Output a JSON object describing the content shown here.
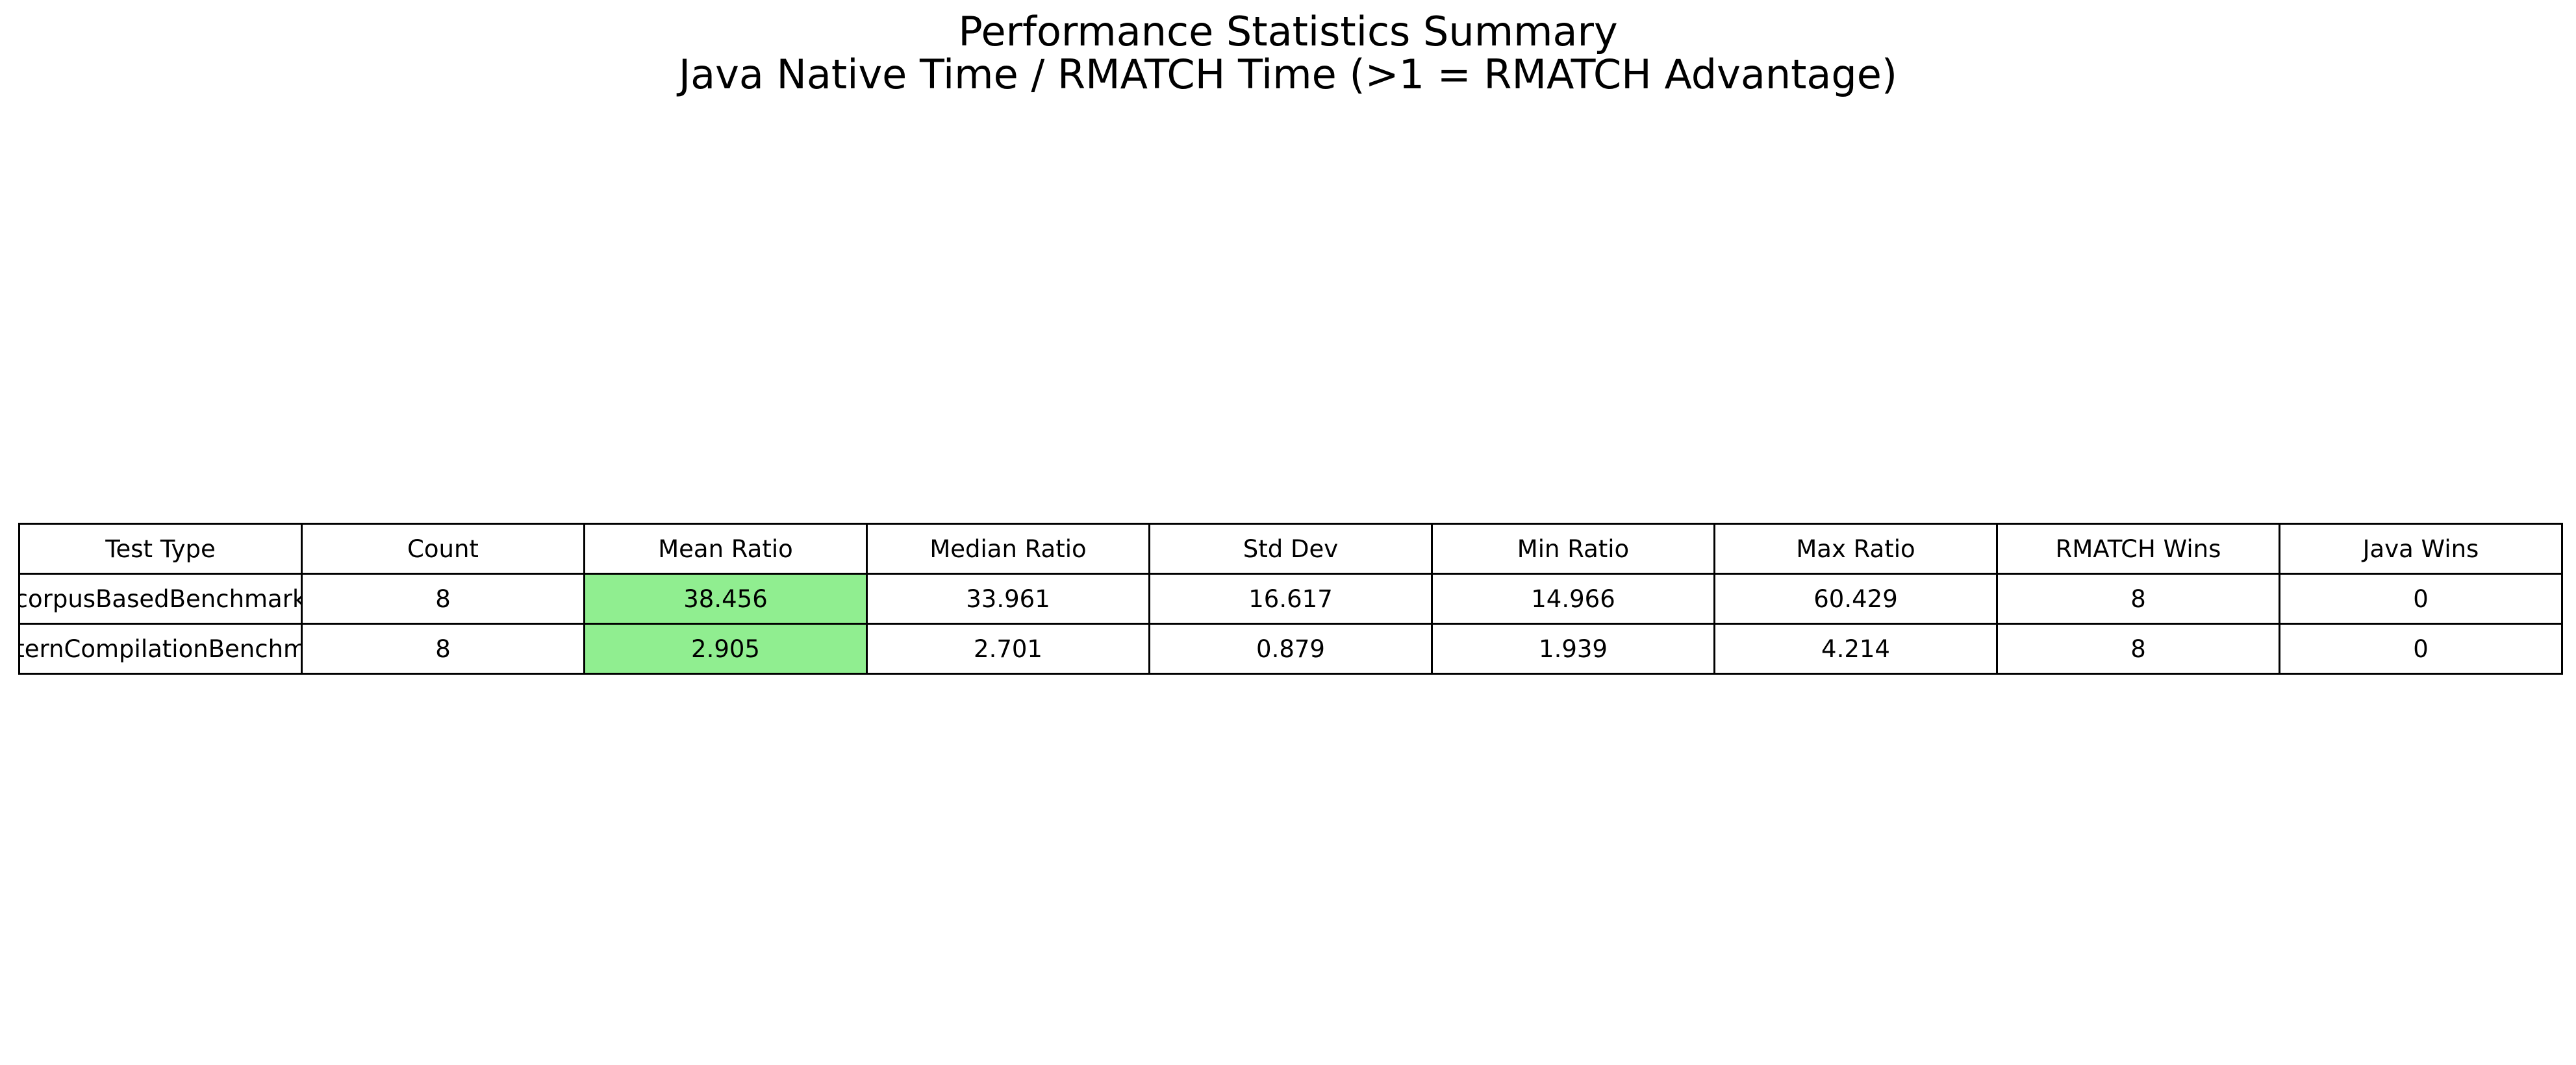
{
  "chart_data": {
    "type": "table",
    "title": "Performance Statistics Summary",
    "subtitle": "Java Native Time / RMATCH Time (>1 = RMATCH Advantage)",
    "highlight_color": "#90ee90",
    "highlight_column": "Mean Ratio",
    "columns": [
      "Test Type",
      "Count",
      "Mean Ratio",
      "Median Ratio",
      "Std Dev",
      "Min Ratio",
      "Max Ratio",
      "RMATCH Wins",
      "Java Wins"
    ],
    "rows": [
      {
        "test_type": "corpusBasedBenchmark",
        "count": "8",
        "mean_ratio": "38.456",
        "median_ratio": "33.961",
        "std_dev": "16.617",
        "min_ratio": "14.966",
        "max_ratio": "60.429",
        "rmatch_wins": "8",
        "java_wins": "0"
      },
      {
        "test_type": "patternCompilationBenchmark",
        "count": "8",
        "mean_ratio": "2.905",
        "median_ratio": "2.701",
        "std_dev": "0.879",
        "min_ratio": "1.939",
        "max_ratio": "4.214",
        "rmatch_wins": "8",
        "java_wins": "0"
      }
    ]
  }
}
